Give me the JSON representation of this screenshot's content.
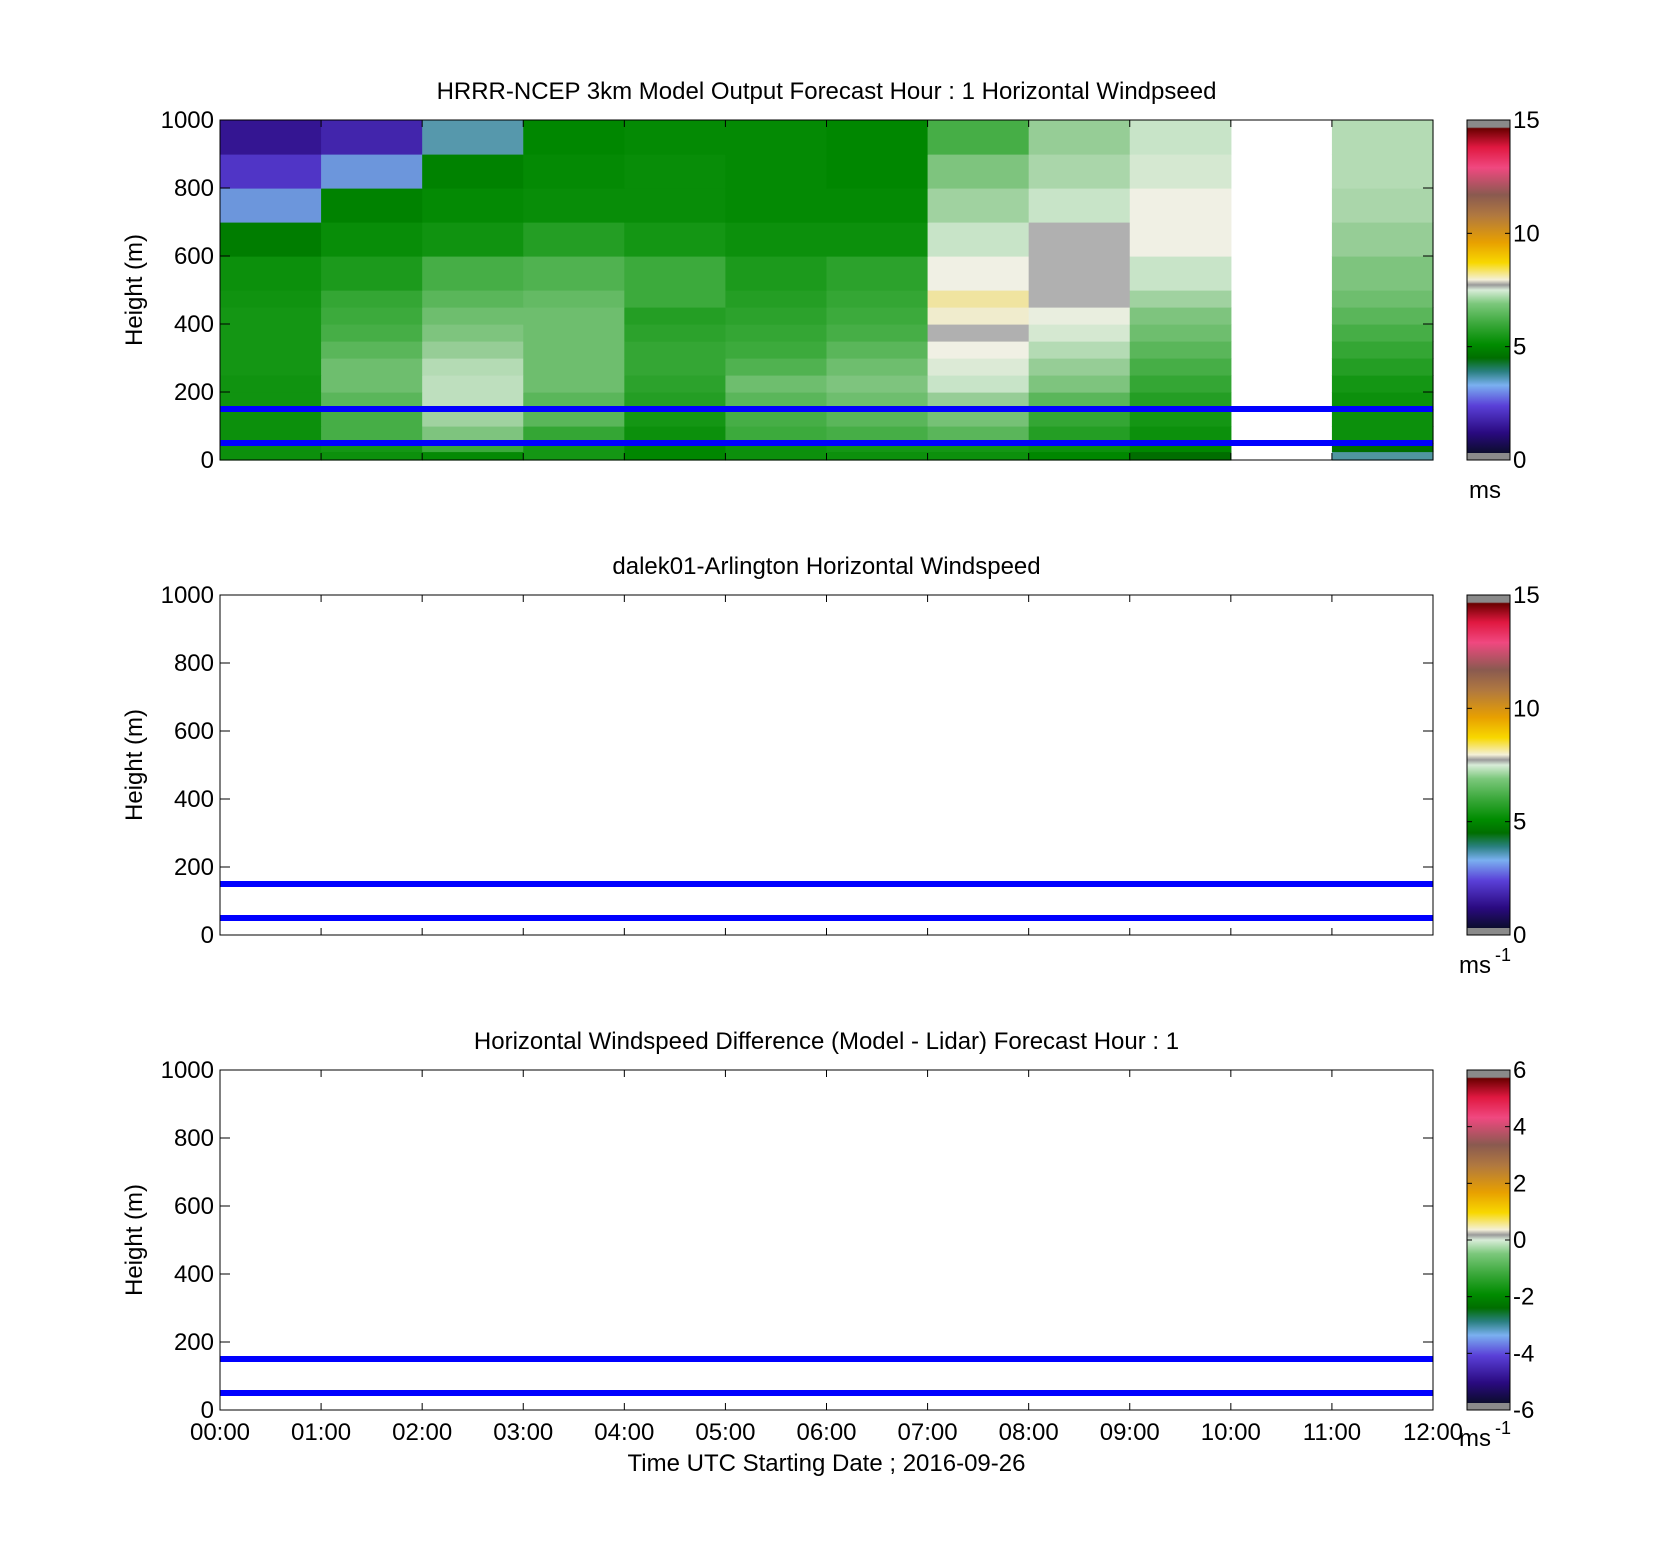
{
  "figure": {
    "xaxis_label": "Time UTC  Starting Date ; 2016-09-26",
    "x_ticks": [
      "00:00",
      "01:00",
      "02:00",
      "03:00",
      "04:00",
      "05:00",
      "06:00",
      "07:00",
      "08:00",
      "09:00",
      "10:00",
      "11:00",
      "12:00"
    ],
    "reference_line_color": "#0000ff"
  },
  "chart_data": [
    {
      "type": "heatmap",
      "title": "HRRR-NCEP 3km Model Output   Forecast Hour : 1 Horizontal Windpseed",
      "ylabel": "Height (m)",
      "ylim": [
        0,
        1000
      ],
      "y_ticks": [
        "0",
        "200",
        "400",
        "600",
        "800",
        "1000"
      ],
      "xlim": [
        "00:00",
        "12:00"
      ],
      "colorbar": {
        "range": [
          0,
          15
        ],
        "ticks": [
          "0",
          "5",
          "10",
          "15"
        ],
        "unit": "ms",
        "unit_sup": ""
      },
      "reference_lines_m": [
        50,
        150
      ],
      "columns": [
        "00:00",
        "01:00",
        "02:00",
        "03:00",
        "04:00",
        "05:00",
        "06:00",
        "07:00",
        "08:00",
        "09:00",
        "10:00",
        "11:00"
      ],
      "height_levels_m": [
        0,
        25,
        50,
        100,
        150,
        200,
        250,
        300,
        350,
        400,
        450,
        500,
        600,
        700,
        800,
        900,
        1000
      ],
      "windspeed_ms": [
        [
          4.8,
          4.8,
          4.6,
          5.0,
          4.5,
          4.8,
          4.8,
          4.8,
          4.5,
          4.0,
          null,
          3.5
        ],
        [
          4.8,
          5.0,
          5.5,
          5.0,
          4.5,
          4.8,
          5.0,
          5.0,
          4.8,
          4.5,
          null,
          4.0
        ],
        [
          4.8,
          5.6,
          6.2,
          5.4,
          4.8,
          5.5,
          5.6,
          5.8,
          5.2,
          4.8,
          null,
          4.8
        ],
        [
          4.8,
          5.6,
          6.6,
          5.8,
          5.0,
          5.6,
          5.8,
          6.1,
          5.4,
          5.0,
          null,
          4.8
        ],
        [
          4.9,
          5.8,
          6.9,
          5.8,
          5.2,
          5.8,
          6.0,
          6.5,
          5.8,
          5.2,
          null,
          4.8
        ],
        [
          4.9,
          6.0,
          6.9,
          6.0,
          5.3,
          6.0,
          6.2,
          7.0,
          6.2,
          5.4,
          null,
          5.0
        ],
        [
          5.0,
          6.0,
          6.8,
          6.0,
          5.4,
          5.7,
          6.0,
          7.3,
          6.5,
          5.6,
          null,
          5.2
        ],
        [
          5.0,
          5.8,
          6.5,
          6.0,
          5.4,
          5.5,
          5.8,
          7.6,
          6.8,
          5.8,
          null,
          5.4
        ],
        [
          5.0,
          5.6,
          6.2,
          6.0,
          5.3,
          5.4,
          5.6,
          15.5,
          7.2,
          6.0,
          null,
          5.6
        ],
        [
          5.0,
          5.5,
          6.0,
          6.0,
          5.2,
          5.3,
          5.5,
          7.8,
          7.5,
          6.2,
          null,
          5.8
        ],
        [
          4.9,
          5.4,
          5.8,
          5.9,
          5.5,
          5.2,
          5.4,
          8.2,
          15.5,
          6.6,
          null,
          6.0
        ],
        [
          4.8,
          5.1,
          5.6,
          5.7,
          5.5,
          5.1,
          5.3,
          7.6,
          15.5,
          7.0,
          null,
          6.2
        ],
        [
          4.3,
          4.7,
          4.9,
          5.2,
          5.0,
          4.8,
          4.8,
          7.0,
          15.5,
          7.6,
          null,
          6.5
        ],
        [
          2.9,
          4.4,
          4.6,
          4.7,
          4.7,
          4.6,
          4.6,
          6.6,
          7.0,
          7.6,
          null,
          6.7
        ],
        [
          1.8,
          2.9,
          4.4,
          4.6,
          4.7,
          4.6,
          4.5,
          6.2,
          6.7,
          7.2,
          null,
          6.8
        ],
        [
          1.2,
          1.5,
          3.4,
          4.5,
          4.6,
          4.6,
          4.5,
          5.6,
          6.5,
          7.0,
          null,
          6.8
        ],
        [
          0.6,
          1.2,
          1.8,
          2.9,
          4.3,
          4.4,
          4.0,
          4.8,
          5.7,
          6.5,
          null,
          6.4
        ]
      ]
    },
    {
      "type": "heatmap",
      "title": "dalek01-Arlington  Horizontal Windspeed",
      "ylabel": "Height (m)",
      "ylim": [
        0,
        1000
      ],
      "y_ticks": [
        "0",
        "200",
        "400",
        "600",
        "800",
        "1000"
      ],
      "xlim": [
        "00:00",
        "12:00"
      ],
      "colorbar": {
        "range": [
          0,
          15
        ],
        "ticks": [
          "0",
          "5",
          "10",
          "15"
        ],
        "unit": "ms",
        "unit_sup": "-1"
      },
      "reference_lines_m": [
        50,
        150
      ],
      "windspeed_ms": []
    },
    {
      "type": "heatmap",
      "title": "Horizontal Windspeed Difference (Model - Lidar) Forecast Hour : 1",
      "ylabel": "Height (m)",
      "ylim": [
        0,
        1000
      ],
      "y_ticks": [
        "0",
        "200",
        "400",
        "600",
        "800",
        "1000"
      ],
      "xlim": [
        "00:00",
        "12:00"
      ],
      "colorbar": {
        "range": [
          -6,
          6
        ],
        "ticks": [
          "-6",
          "-4",
          "-2",
          "0",
          "2",
          "4",
          "6"
        ],
        "unit": "ms",
        "unit_sup": "-1"
      },
      "reference_lines_m": [
        50,
        150
      ],
      "windspeed_ms": []
    }
  ]
}
